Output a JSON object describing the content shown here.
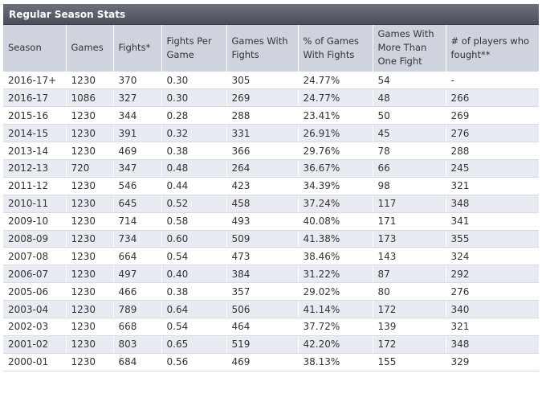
{
  "title": "Regular Season Stats",
  "columns": [
    "Season",
    "Games",
    "Fights*",
    "Fights Per Game",
    "Games With Fights",
    "% of Games With Fights",
    "Games With More Than One Fight",
    "# of players who fought**"
  ],
  "rows": [
    [
      "2016-17+",
      "1230",
      "370",
      "0.30",
      "305",
      "24.77%",
      "54",
      "-"
    ],
    [
      "2016-17",
      "1086",
      "327",
      "0.30",
      "269",
      "24.77%",
      "48",
      "266"
    ],
    [
      "2015-16",
      "1230",
      "344",
      "0.28",
      "288",
      "23.41%",
      "50",
      "269"
    ],
    [
      "2014-15",
      "1230",
      "391",
      "0.32",
      "331",
      "26.91%",
      "45",
      "276"
    ],
    [
      "2013-14",
      "1230",
      "469",
      "0.38",
      "366",
      "29.76%",
      "78",
      "288"
    ],
    [
      "2012-13",
      "720",
      "347",
      "0.48",
      "264",
      "36.67%",
      "66",
      "245"
    ],
    [
      "2011-12",
      "1230",
      "546",
      "0.44",
      "423",
      "34.39%",
      "98",
      "321"
    ],
    [
      "2010-11",
      "1230",
      "645",
      "0.52",
      "458",
      "37.24%",
      "117",
      "348"
    ],
    [
      "2009-10",
      "1230",
      "714",
      "0.58",
      "493",
      "40.08%",
      "171",
      "341"
    ],
    [
      "2008-09",
      "1230",
      "734",
      "0.60",
      "509",
      "41.38%",
      "173",
      "355"
    ],
    [
      "2007-08",
      "1230",
      "664",
      "0.54",
      "473",
      "38.46%",
      "143",
      "324"
    ],
    [
      "2006-07",
      "1230",
      "497",
      "0.40",
      "384",
      "31.22%",
      "87",
      "292"
    ],
    [
      "2005-06",
      "1230",
      "466",
      "0.38",
      "357",
      "29.02%",
      "80",
      "276"
    ],
    [
      "2003-04",
      "1230",
      "789",
      "0.64",
      "506",
      "41.14%",
      "172",
      "340"
    ],
    [
      "2002-03",
      "1230",
      "668",
      "0.54",
      "464",
      "37.72%",
      "139",
      "321"
    ],
    [
      "2001-02",
      "1230",
      "803",
      "0.65",
      "519",
      "42.20%",
      "172",
      "348"
    ],
    [
      "2000-01",
      "1230",
      "684",
      "0.56",
      "469",
      "38.13%",
      "155",
      "329"
    ]
  ]
}
